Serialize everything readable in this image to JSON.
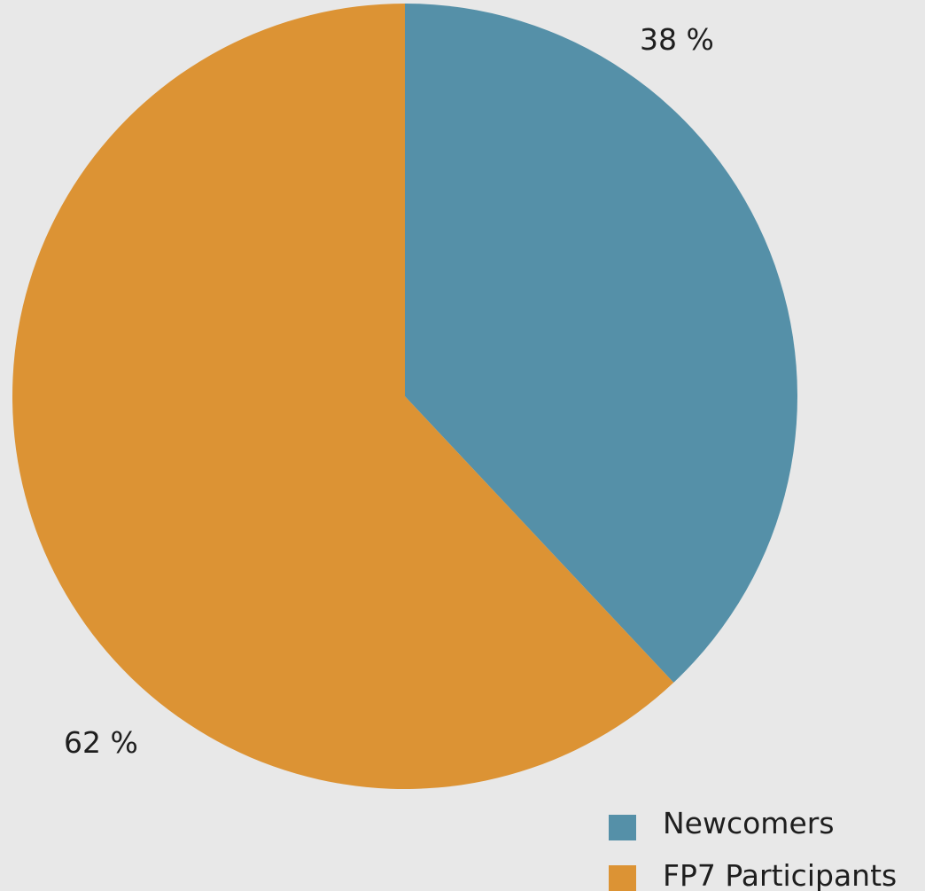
{
  "chart_data": {
    "type": "pie",
    "slices": [
      {
        "name": "Newcomers",
        "value": 38,
        "label": "38 %",
        "color": "#5590a8"
      },
      {
        "name": "FP7 Participants",
        "value": 62,
        "label": "62 %",
        "color": "#dc9334"
      }
    ],
    "start_angle": "12 o'clock",
    "direction": "clockwise",
    "legend_position": "bottom-right",
    "title": ""
  },
  "background_color": "#e8e8e8"
}
